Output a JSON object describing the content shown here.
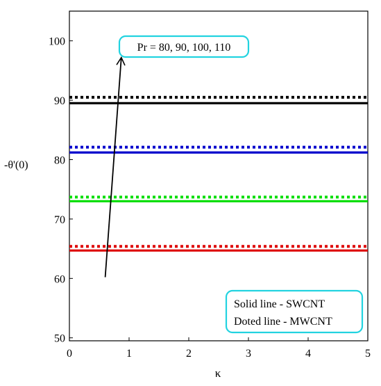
{
  "chart_data": {
    "type": "line",
    "xlabel": "κ",
    "ylabel": "-θ'(0)",
    "xlim": [
      0,
      5
    ],
    "ylim": [
      49.5,
      105
    ],
    "xticks": [
      0,
      1,
      2,
      3,
      4,
      5
    ],
    "yticks": [
      50,
      60,
      70,
      80,
      90,
      100
    ],
    "grid": false,
    "series": [
      {
        "group": "SWCNT",
        "color": "#000000",
        "style": "solid",
        "x": [
          0,
          5
        ],
        "y": [
          89.5,
          89.5
        ]
      },
      {
        "group": "MWCNT",
        "color": "#000000",
        "style": "dotted",
        "x": [
          0,
          5
        ],
        "y": [
          90.5,
          90.5
        ]
      },
      {
        "group": "SWCNT",
        "color": "#0000cc",
        "style": "solid",
        "x": [
          0,
          5
        ],
        "y": [
          81.2,
          81.2
        ]
      },
      {
        "group": "MWCNT",
        "color": "#0000cc",
        "style": "dotted",
        "x": [
          0,
          5
        ],
        "y": [
          82.1,
          82.1
        ]
      },
      {
        "group": "SWCNT",
        "color": "#00dd00",
        "style": "solid",
        "x": [
          0,
          5
        ],
        "y": [
          73,
          73
        ]
      },
      {
        "group": "MWCNT",
        "color": "#00dd00",
        "style": "dotted",
        "x": [
          0,
          5
        ],
        "y": [
          73.7,
          73.7
        ]
      },
      {
        "group": "SWCNT",
        "color": "#dd0000",
        "style": "solid",
        "x": [
          0,
          5
        ],
        "y": [
          64.7,
          64.7
        ]
      },
      {
        "group": "MWCNT",
        "color": "#dd0000",
        "style": "dotted",
        "x": [
          0,
          5
        ],
        "y": [
          65.4,
          65.4
        ]
      }
    ],
    "annotations": {
      "pr_label": "Pr = 80, 90, 100, 110",
      "pr_arrow": {
        "from": [
          0.6,
          60.2
        ],
        "to": [
          0.87,
          97.2
        ]
      },
      "legend_line1": "Solid line - SWCNT",
      "legend_line2": "Doted line - MWCNT",
      "legend_placement": "bottom-right",
      "box_color": "#22d3e0"
    }
  }
}
